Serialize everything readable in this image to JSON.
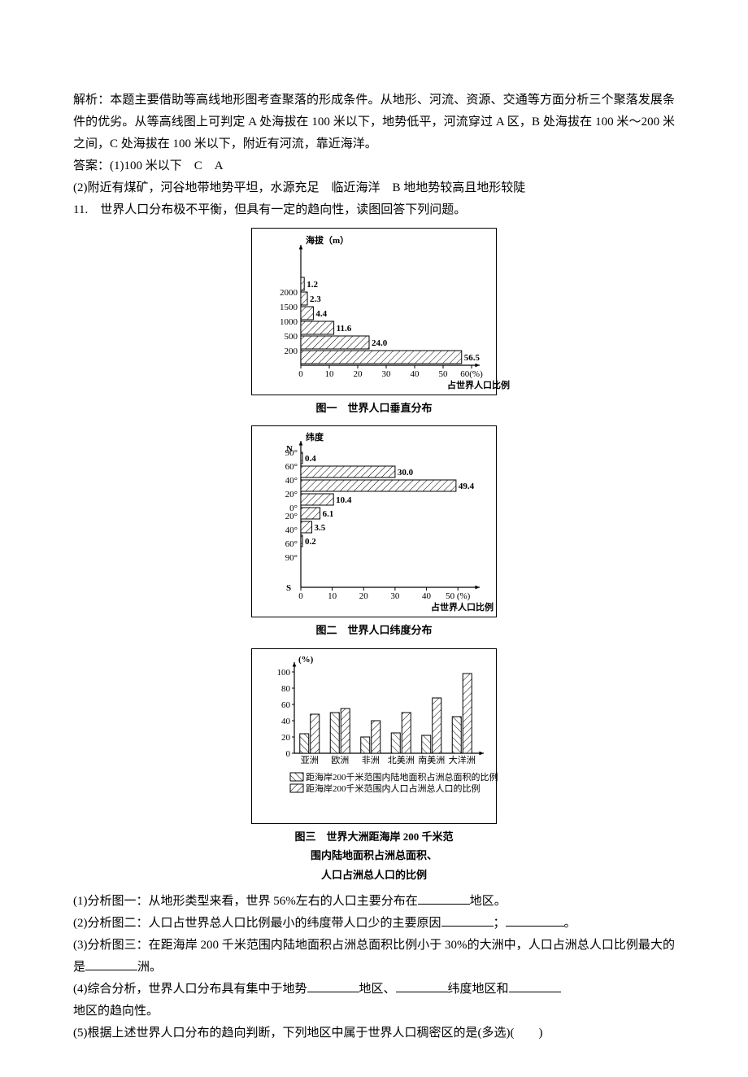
{
  "para_analysis": "解析：本题主要借助等高线地形图考查聚落的形成条件。从地形、河流、资源、交通等方面分析三个聚落发展条件的优劣。从等高线图上可判定 A 处海拔在 100 米以下，地势低平，河流穿过 A 区，B 处海拔在 100 米～200 米之间，C 处海拔在 100 米以下，附近有河流，靠近海洋。",
  "ans_label": "答案：(1)100 米以下　C　A",
  "ans2": "(2)附近有煤矿，河谷地带地势平坦，水源充足　临近海洋　B 地地势较高且地形较陡",
  "q11": "11.　世界人口分布极不平衡，但具有一定的趋向性，读图回答下列问题。",
  "chart1": {
    "y_title": "海拔（m）",
    "x_title": "占世界人口比例",
    "x_ticks": [
      "0",
      "10",
      "20",
      "30",
      "40",
      "50",
      "60(%)"
    ],
    "y_labels": [
      "200",
      "500",
      "1000",
      "1500",
      "2000"
    ],
    "bars": [
      {
        "label": "56.5",
        "value": 56.5
      },
      {
        "label": "24.0",
        "value": 24.0
      },
      {
        "label": "11.6",
        "value": 11.6
      },
      {
        "label": "4.4",
        "value": 4.4
      },
      {
        "label": "2.3",
        "value": 2.3
      },
      {
        "label": "1.2",
        "value": 1.2
      }
    ],
    "caption": "图一　世界人口垂直分布"
  },
  "chart2": {
    "y_title": "纬度",
    "x_title": "占世界人口比例",
    "x_ticks": [
      "0",
      "10",
      "20",
      "30",
      "40",
      "50 (%)"
    ],
    "n_label": "N",
    "s_label": "S",
    "y_labels_top": [
      "90°",
      "60°",
      "40°",
      "20°",
      "0°"
    ],
    "y_labels_bot": [
      "20°",
      "40°",
      "60°",
      "90°"
    ],
    "bars_top": [
      {
        "label": "0.4",
        "value": 0.4
      },
      {
        "label": "30.0",
        "value": 30.0
      },
      {
        "label": "49.4",
        "value": 49.4
      },
      {
        "label": "10.4",
        "value": 10.4
      }
    ],
    "bars_bot": [
      {
        "label": "6.1",
        "value": 6.1
      },
      {
        "label": "3.5",
        "value": 3.5
      },
      {
        "label": "0.2",
        "value": 0.2
      },
      {
        "label": "",
        "value": 0
      }
    ],
    "caption": "图二　世界人口纬度分布"
  },
  "chart3": {
    "y_title": "(%)",
    "y_ticks": [
      "0",
      "20",
      "40",
      "60",
      "80",
      "100"
    ],
    "continents": [
      "亚洲",
      "欧洲",
      "非洲",
      "北美洲",
      "南美洲",
      "大洋洲"
    ],
    "series_area": [
      24,
      50,
      20,
      25,
      22,
      45
    ],
    "series_pop": [
      48,
      55,
      40,
      50,
      68,
      98
    ],
    "legend_area": "距海岸200千米范围内陆地面积占洲总面积的比例",
    "legend_pop": "距海岸200千米范围内人口占洲总人口的比例",
    "caption_l1": "图三　世界大洲距海岸 200 千米范",
    "caption_l2": "围内陆地面积占洲总面积、",
    "caption_l3": "人口占洲总人口的比例"
  },
  "q1": "(1)分析图一：从地形类型来看，世界 56%左右的人口主要分布在",
  "q1_tail": "地区。",
  "q2_a": "(2)分析图二：人口占世界总人口比例最小的纬度带人口少的主要原因",
  "q2_b": "；",
  "q2_c": "。",
  "q3_a": "(3)分析图三：在距海岸 200 千米范围内陆地面积占洲总面积比例小于 30%的大洲中，人口占洲总人口比例最大的是",
  "q3_b": "洲。",
  "q4_a": "(4)综合分析，世界人口分布具有集中于地势",
  "q4_b": "地区、",
  "q4_c": "纬度地区和",
  "q4_d": "地区的趋向性。",
  "q5": "(5)根据上述世界人口分布的趋向判断，下列地区中属于世界人口稠密区的是(多选)(　　)"
}
